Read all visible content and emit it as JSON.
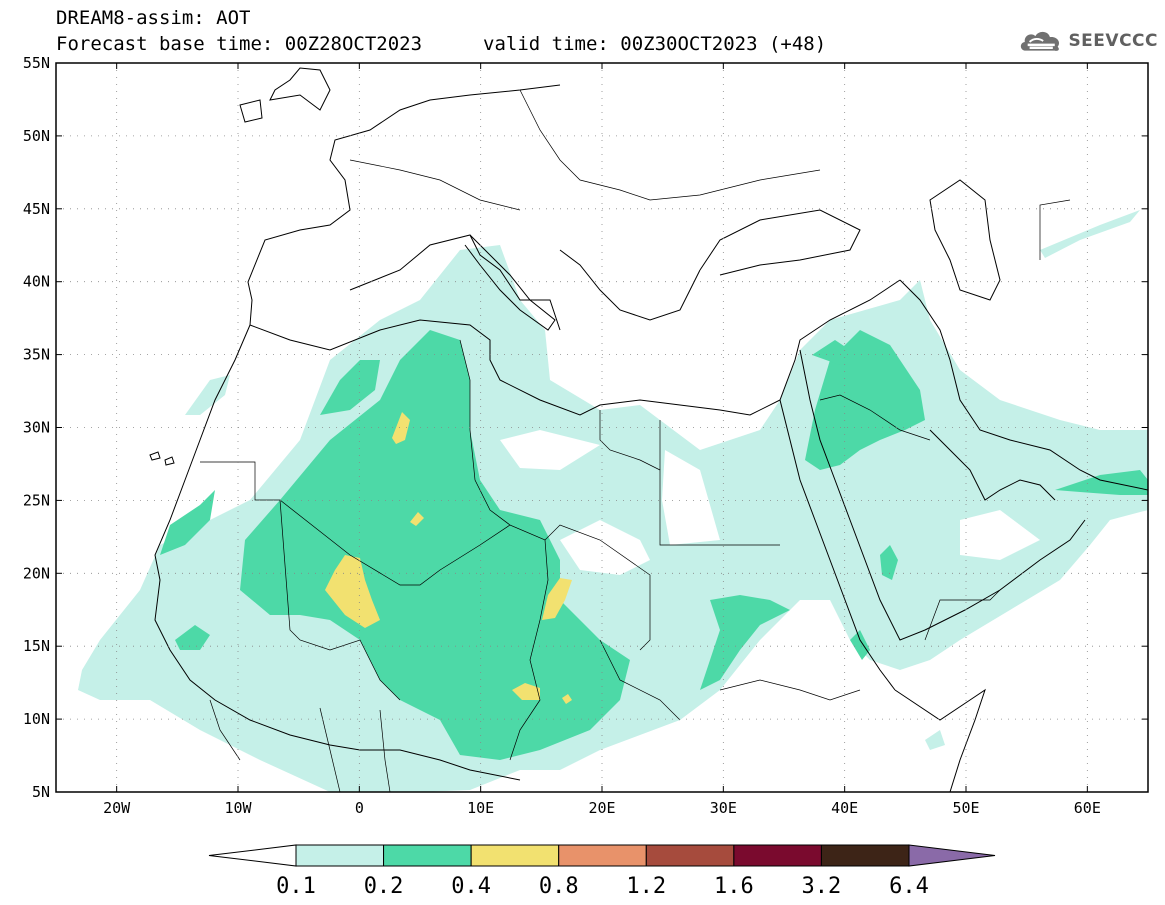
{
  "header": {
    "title_line1": "DREAM8-assim: AOT",
    "title_line2": "Forecast base time: 00Z28OCT2023",
    "valid_time": "valid time: 00Z30OCT2023 (+48)"
  },
  "logo": {
    "text": "SEEVCCC",
    "icon": "cloud-icon"
  },
  "map": {
    "lon_range": [
      -25,
      65
    ],
    "lat_range": [
      5,
      55
    ],
    "lat_ticks": [
      {
        "value": 55,
        "label": "55N"
      },
      {
        "value": 50,
        "label": "50N"
      },
      {
        "value": 45,
        "label": "45N"
      },
      {
        "value": 40,
        "label": "40N"
      },
      {
        "value": 35,
        "label": "35N"
      },
      {
        "value": 30,
        "label": "30N"
      },
      {
        "value": 25,
        "label": "25N"
      },
      {
        "value": 20,
        "label": "20N"
      },
      {
        "value": 15,
        "label": "15N"
      },
      {
        "value": 10,
        "label": "10N"
      },
      {
        "value": 5,
        "label": "5N"
      }
    ],
    "lon_ticks": [
      {
        "value": -20,
        "label": "20W"
      },
      {
        "value": -10,
        "label": "10W"
      },
      {
        "value": 0,
        "label": "0"
      },
      {
        "value": 10,
        "label": "10E"
      },
      {
        "value": 20,
        "label": "20E"
      },
      {
        "value": 30,
        "label": "30E"
      },
      {
        "value": 40,
        "label": "40E"
      },
      {
        "value": 50,
        "label": "50E"
      },
      {
        "value": 60,
        "label": "60E"
      }
    ],
    "grid": true,
    "grid_style": "dotted"
  },
  "colorbar": {
    "labels": [
      "0.1",
      "0.2",
      "0.4",
      "0.8",
      "1.2",
      "1.6",
      "3.2",
      "6.4"
    ],
    "colors": [
      "#ffffff",
      "#c5f0e8",
      "#4dd9a7",
      "#f2e170",
      "#e8926a",
      "#a64b3d",
      "#7a0a2e",
      "#3d2417",
      "#8a6aa8"
    ]
  }
}
